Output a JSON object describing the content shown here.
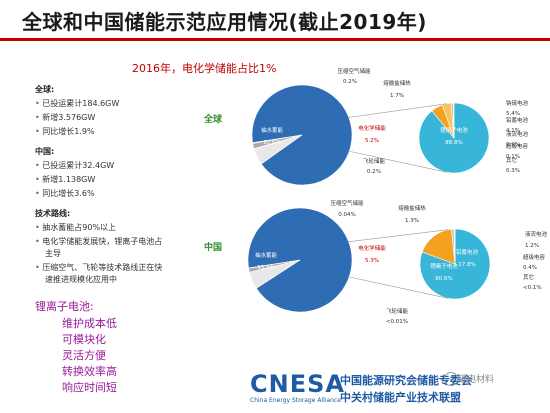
{
  "title": "全球和中国储能示范应用情况(截止2019年)",
  "subtitle": "2016年，电化学储能占比1%",
  "left_panel": {
    "global_head": "全球:",
    "global_items": [
      "已投运累计184.6GW",
      "新增3.576GW",
      "同比增长1.9%"
    ],
    "china_head": "中国:",
    "china_items": [
      "已投运累计32.4GW",
      "新增1.138GW",
      "同比增长3.6%"
    ],
    "tech_head": "技术路线:",
    "tech_items": [
      "抽水蓄能占90%以上",
      "电化学储能发展快，锂离子电池占",
      "主导",
      "压缩空气、飞轮等技术路线正在快",
      "速推进规模化应用中"
    ]
  },
  "li_ion": {
    "head": "锂离子电池:",
    "items": [
      "维护成本低",
      "可模块化",
      "灵活方便",
      "转换效率高",
      "响应时间短"
    ]
  },
  "footer": {
    "logo": "CNESA",
    "tagline": "China Energy Storage Alliance",
    "org_line1": "中国能源研究会储能专委会",
    "org_line2": "中关村储能产业技术联盟",
    "watermark": "锂电材料"
  },
  "chart_data": [
    {
      "type": "pie",
      "region_label": "全球",
      "slices": [
        {
          "name": "抽水蓄能",
          "label": "92.6%",
          "value": 92.6,
          "color": "#2e6db4"
        },
        {
          "name": "电化学储能",
          "label": "5.2%",
          "value": 5.2,
          "color": "#e8e8e8"
        },
        {
          "name": "压缩空气储能",
          "label": "0.2%",
          "value": 0.2,
          "color": "#888888"
        },
        {
          "name": "熔融盐储热",
          "label": "1.7%",
          "value": 1.7,
          "color": "#aaaaaa"
        },
        {
          "name": "飞轮储能",
          "label": "0.2%",
          "value": 0.2,
          "color": "#cccccc"
        }
      ],
      "sub_pie": {
        "of": "电化学储能",
        "slices": [
          {
            "name": "锂离子电池",
            "label": "88.8%",
            "value": 88.8,
            "color": "#38b6d9"
          },
          {
            "name": "钠硫电池",
            "label": "5.4%",
            "value": 5.4,
            "color": "#f4a020"
          },
          {
            "name": "铅蓄电池",
            "label": "4.1%",
            "value": 4.1,
            "color": "#f7c35a"
          },
          {
            "name": "液流电池",
            "label": "0.9%",
            "value": 0.9,
            "color": "#c0c0c0"
          },
          {
            "name": "超级电容",
            "label": "0.1%",
            "value": 0.1,
            "color": "#d9d9d9"
          },
          {
            "name": "其它",
            "label": "0.3%",
            "value": 0.3,
            "color": "#eeeeee"
          }
        ]
      }
    },
    {
      "type": "pie",
      "region_label": "中国",
      "slices": [
        {
          "name": "抽水蓄能",
          "label": "93.4%",
          "value": 93.4,
          "color": "#2e6db4"
        },
        {
          "name": "电化学储能",
          "label": "5.3%",
          "value": 5.3,
          "color": "#e8e8e8"
        },
        {
          "name": "压缩空气储能",
          "label": "0.04%",
          "value": 0.04,
          "color": "#888888"
        },
        {
          "name": "熔融盐储热",
          "label": "1.3%",
          "value": 1.3,
          "color": "#aaaaaa"
        },
        {
          "name": "飞轮储能",
          "label": "<0.01%",
          "value": 0.01,
          "color": "#cccccc"
        }
      ],
      "sub_pie": {
        "of": "电化学储能",
        "slices": [
          {
            "name": "锂离子电池",
            "label": "80.6%",
            "value": 80.6,
            "color": "#38b6d9"
          },
          {
            "name": "铅蓄电池",
            "label": "17.8%",
            "value": 17.8,
            "color": "#f4a020"
          },
          {
            "name": "液流电池",
            "label": "1.2%",
            "value": 1.2,
            "color": "#c0c0c0"
          },
          {
            "name": "超级电容",
            "label": "0.4%",
            "value": 0.4,
            "color": "#d9d9d9"
          },
          {
            "name": "其它",
            "label": "<0.1%",
            "value": 0.05,
            "color": "#eeeeee"
          }
        ]
      }
    }
  ]
}
